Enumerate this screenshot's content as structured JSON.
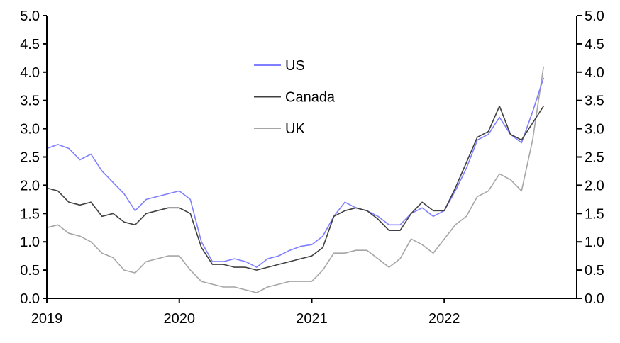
{
  "chart_data": {
    "type": "line",
    "title": "",
    "xlabel": "",
    "ylabel": "",
    "xlim": [
      2019.0,
      2023.0
    ],
    "ylim": [
      0,
      5
    ],
    "y_ticks": [
      "0.0",
      "0.5",
      "1.0",
      "1.5",
      "2.0",
      "2.5",
      "3.0",
      "3.5",
      "4.0",
      "4.5",
      "5.0"
    ],
    "x_ticks": [
      {
        "value": 2019,
        "label": "2019"
      },
      {
        "value": 2020,
        "label": "2020"
      },
      {
        "value": 2021,
        "label": "2021"
      },
      {
        "value": 2022,
        "label": "2022"
      }
    ],
    "legend_position": "top-center",
    "x_start": 2019.0,
    "x_step_months": 1,
    "series": [
      {
        "name": "US",
        "color": "#7f7fff",
        "values": [
          2.65,
          2.72,
          2.65,
          2.45,
          2.55,
          2.25,
          2.05,
          1.85,
          1.55,
          1.75,
          1.8,
          1.85,
          1.9,
          1.75,
          1.0,
          0.65,
          0.65,
          0.7,
          0.65,
          0.55,
          0.7,
          0.75,
          0.85,
          0.92,
          0.95,
          1.1,
          1.45,
          1.7,
          1.6,
          1.55,
          1.45,
          1.3,
          1.3,
          1.5,
          1.6,
          1.45,
          1.55,
          1.9,
          2.3,
          2.8,
          2.9,
          3.2,
          2.9,
          2.75,
          3.3,
          3.9
        ]
      },
      {
        "name": "Canada",
        "color": "#404040",
        "values": [
          1.95,
          1.9,
          1.7,
          1.65,
          1.7,
          1.45,
          1.5,
          1.35,
          1.3,
          1.5,
          1.55,
          1.6,
          1.6,
          1.5,
          0.9,
          0.6,
          0.6,
          0.55,
          0.55,
          0.5,
          0.55,
          0.6,
          0.65,
          0.7,
          0.75,
          0.9,
          1.45,
          1.55,
          1.6,
          1.55,
          1.4,
          1.2,
          1.2,
          1.5,
          1.7,
          1.55,
          1.55,
          1.95,
          2.4,
          2.85,
          2.95,
          3.4,
          2.9,
          2.8,
          3.1,
          3.4
        ]
      },
      {
        "name": "UK",
        "color": "#a6a6a6",
        "values": [
          1.25,
          1.3,
          1.15,
          1.1,
          1.0,
          0.8,
          0.72,
          0.5,
          0.45,
          0.65,
          0.7,
          0.75,
          0.75,
          0.5,
          0.3,
          0.25,
          0.2,
          0.2,
          0.15,
          0.1,
          0.2,
          0.25,
          0.3,
          0.3,
          0.3,
          0.5,
          0.8,
          0.8,
          0.85,
          0.85,
          0.7,
          0.55,
          0.7,
          1.05,
          0.95,
          0.8,
          1.05,
          1.3,
          1.45,
          1.8,
          1.9,
          2.2,
          2.1,
          1.9,
          2.8,
          4.1
        ]
      }
    ]
  }
}
